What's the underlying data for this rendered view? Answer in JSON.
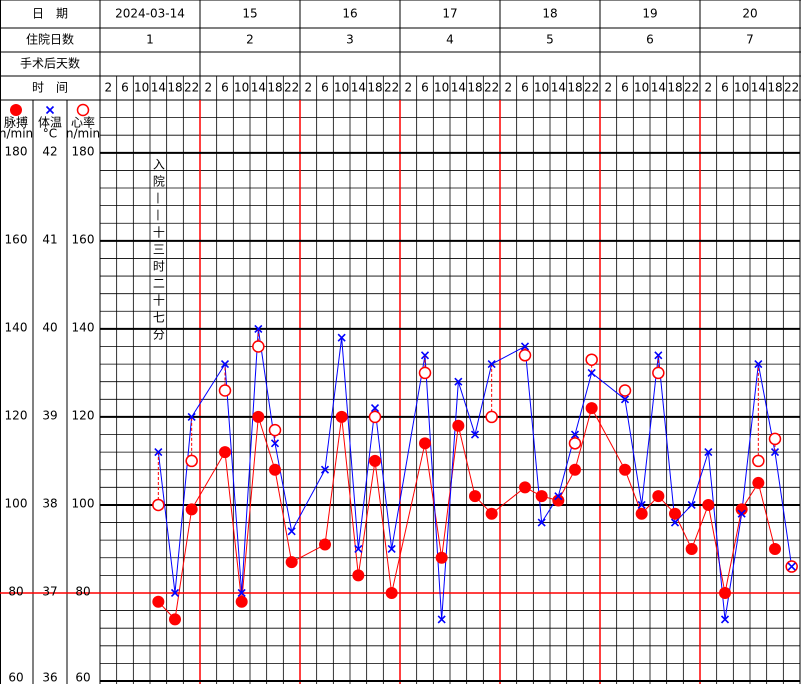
{
  "chart_data": {
    "type": "line",
    "header": {
      "date_label": "日　期",
      "hospital_day_label": "住院日数",
      "post_op_label": "手术后天数",
      "time_label": "时　间"
    },
    "dates": [
      "2024-03-14",
      "15",
      "16",
      "17",
      "18",
      "19",
      "20"
    ],
    "hospital_days": [
      1,
      2,
      3,
      4,
      5,
      6,
      7
    ],
    "categories": [
      2,
      6,
      10,
      14,
      18,
      22,
      2,
      6,
      10,
      14,
      18,
      22,
      2,
      6,
      10,
      14,
      18,
      22,
      2,
      6,
      10,
      14,
      18,
      22,
      2,
      6,
      10,
      14,
      18,
      22,
      2,
      6,
      10,
      14,
      18,
      22,
      2,
      6,
      10,
      14,
      18,
      22
    ],
    "category_colors": [
      "#ff0000",
      "#000000",
      "#000000",
      "#000000",
      "#ff0000",
      "#ff0000",
      "#ff0000",
      "#000000",
      "#000000",
      "#000000",
      "#ff0000",
      "#ff0000",
      "#ff0000",
      "#000000",
      "#000000",
      "#000000",
      "#ff0000",
      "#ff0000",
      "#ff0000",
      "#000000",
      "#000000",
      "#000000",
      "#ff0000",
      "#ff0000",
      "#ff0000",
      "#000000",
      "#000000",
      "#000000",
      "#ff0000",
      "#ff0000",
      "#ff0000",
      "#000000",
      "#000000",
      "#000000",
      "#ff0000",
      "#ff0000",
      "#ff0000",
      "#000000",
      "#000000",
      "#000000",
      "#ff0000",
      "#ff0000"
    ],
    "series": [
      {
        "name": "脉搏",
        "unit": "n/min",
        "color": "#ff0000",
        "axis": "y",
        "marker": "filled-circle",
        "connect": true,
        "values": [
          null,
          null,
          null,
          78,
          74,
          99,
          null,
          112,
          78,
          120,
          108,
          87,
          null,
          91,
          120,
          84,
          110,
          80,
          null,
          114,
          88,
          118,
          102,
          98,
          null,
          104,
          102,
          101,
          108,
          122,
          null,
          108,
          98,
          102,
          98,
          90,
          100,
          80,
          99,
          105,
          90,
          null
        ]
      },
      {
        "name": "体温",
        "unit": "°C",
        "color": "#0000ff",
        "axis": "y2",
        "marker": "x",
        "connect": true,
        "values": [
          null,
          null,
          null,
          38.6,
          37.0,
          39.0,
          null,
          39.6,
          37.0,
          40.0,
          38.7,
          37.7,
          null,
          38.4,
          39.9,
          37.5,
          39.1,
          37.5,
          null,
          39.7,
          36.7,
          39.4,
          38.8,
          39.6,
          null,
          39.8,
          37.8,
          38.1,
          38.8,
          39.5,
          null,
          39.2,
          38.0,
          39.7,
          37.8,
          38.0,
          38.6,
          36.7,
          37.9,
          39.6,
          38.6,
          37.3
        ]
      },
      {
        "name": "心率",
        "unit": "n/min",
        "color": "#ff0000",
        "axis": "y3",
        "marker": "hollow-circle",
        "connect": false,
        "dashed_link_to_series": 1,
        "values": [
          null,
          null,
          null,
          100,
          null,
          110,
          null,
          126,
          null,
          136,
          117,
          null,
          null,
          null,
          null,
          null,
          120,
          null,
          null,
          130,
          null,
          null,
          null,
          120,
          null,
          134,
          null,
          null,
          114,
          133,
          null,
          126,
          null,
          130,
          null,
          null,
          null,
          null,
          null,
          110,
          115,
          86
        ]
      }
    ],
    "ylim": [
      60,
      192
    ],
    "yticks": [
      60,
      80,
      100,
      120,
      140,
      160,
      180
    ],
    "y2lim": [
      36,
      42.6
    ],
    "y2ticks": [
      36,
      37,
      38,
      39,
      40,
      41,
      42
    ],
    "y3lim": [
      60,
      192
    ],
    "y3ticks": [
      60,
      80,
      100,
      120,
      140,
      160,
      180
    ],
    "reference_line": {
      "axis": "y2",
      "value": 37,
      "color": "#ff0000"
    },
    "day_border_color": "#ff0000",
    "annotation": {
      "text": "入院——十三时二十七分",
      "color": "#ff0000"
    }
  }
}
